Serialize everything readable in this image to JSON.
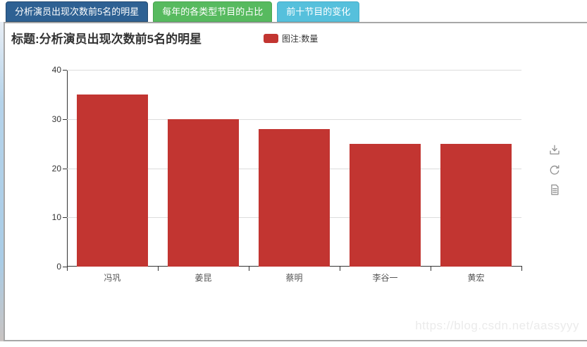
{
  "page": {
    "tabs": [
      {
        "label": "分析演员出现次数前5名的明星",
        "color": "#2e6193",
        "border": "#22496f"
      },
      {
        "label": "每年的各类型节目的占比",
        "color": "#57ba5f",
        "border": "#49a551"
      },
      {
        "label": "前十节目的变化",
        "color": "#56c0dc",
        "border": "#47aec9"
      }
    ],
    "header": {
      "title": "标题:分析演员出现次数前5名的明星",
      "legend_label": "图注:数量",
      "legend_color": "#c23531"
    },
    "toolbox": {
      "save_icon": "save-as-image-icon",
      "restore_icon": "restore-icon",
      "dataview_icon": "data-view-icon"
    },
    "watermark": "https://blog.csdn.net/aassyyy"
  },
  "chart_data": {
    "type": "bar",
    "title": "标题:分析演员出现次数前5名的明星",
    "legend": [
      "数量"
    ],
    "legend_position": "top-center",
    "categories": [
      "冯巩",
      "姜昆",
      "蔡明",
      "李谷一",
      "黄宏"
    ],
    "series": [
      {
        "name": "数量",
        "color": "#c23531",
        "values": [
          35,
          30,
          28,
          25,
          25
        ]
      }
    ],
    "xlabel": "",
    "ylabel": "",
    "ylim": [
      0,
      40
    ],
    "yticks": [
      0,
      10,
      20,
      30,
      40
    ],
    "grid": true
  }
}
